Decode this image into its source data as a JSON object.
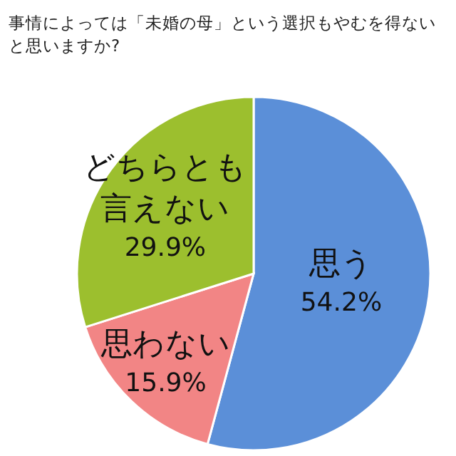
{
  "chart_data": {
    "type": "pie",
    "title": "事情によっては「未婚の母」という選択もやむを得ないと思いますか?",
    "categories": [
      "思う",
      "思わない",
      "どちらとも言えない"
    ],
    "values": [
      54.2,
      15.9,
      29.9
    ],
    "colors": [
      "#5b8fd8",
      "#f28585",
      "#9cbf2e"
    ],
    "value_labels": [
      "54.2%",
      "15.9%",
      "29.9%"
    ]
  }
}
